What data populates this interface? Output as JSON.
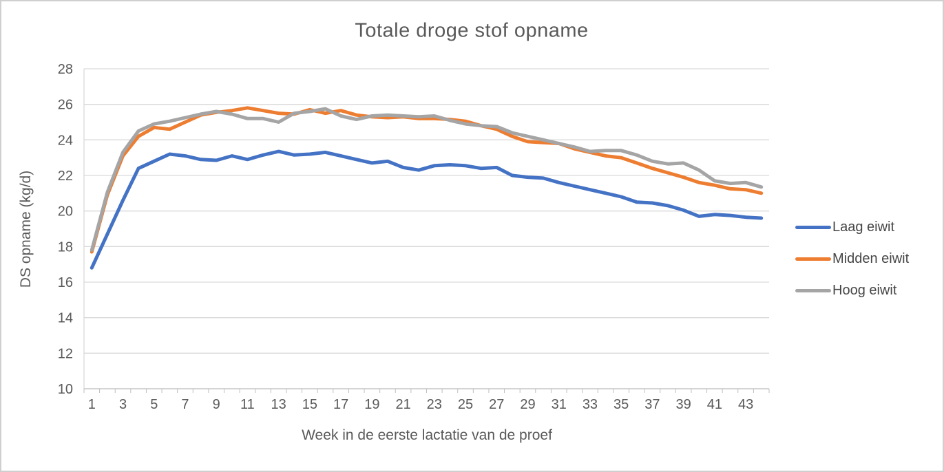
{
  "chart_data": {
    "type": "line",
    "title": "Totale droge stof opname",
    "xlabel": "Week in de eerste lactatie van de proef",
    "ylabel": "DS opname (kg/d)",
    "x_range": [
      1,
      44
    ],
    "x_tick_labels": [
      "1",
      "3",
      "5",
      "7",
      "9",
      "11",
      "13",
      "15",
      "17",
      "19",
      "21",
      "23",
      "25",
      "27",
      "29",
      "31",
      "33",
      "35",
      "37",
      "39",
      "41",
      "43"
    ],
    "x_tick_label_weeks": [
      1,
      3,
      5,
      7,
      9,
      11,
      13,
      15,
      17,
      19,
      21,
      23,
      25,
      27,
      29,
      31,
      33,
      35,
      37,
      39,
      41,
      43
    ],
    "ylim": [
      10,
      28
    ],
    "y_ticks": [
      10,
      12,
      14,
      16,
      18,
      20,
      22,
      24,
      26,
      28
    ],
    "grid": "horizontal",
    "legend_position": "right",
    "colors": {
      "text": "#595959",
      "gridline": "#d9d9d9",
      "axis_line": "#bfbfbf"
    },
    "series": [
      {
        "name": "Laag eiwit",
        "color": "#4472C4",
        "values": [
          16.8,
          18.7,
          20.6,
          22.4,
          22.8,
          23.2,
          23.1,
          22.9,
          22.85,
          23.1,
          22.9,
          23.15,
          23.35,
          23.15,
          23.2,
          23.3,
          23.1,
          22.9,
          22.7,
          22.8,
          22.45,
          22.3,
          22.55,
          22.6,
          22.55,
          22.4,
          22.45,
          22.0,
          21.9,
          21.85,
          21.6,
          21.4,
          21.2,
          21.0,
          20.8,
          20.5,
          20.45,
          20.3,
          20.05,
          19.7,
          19.8,
          19.75,
          19.65,
          19.6
        ]
      },
      {
        "name": "Midden eiwit",
        "color": "#ED7D31",
        "values": [
          17.7,
          20.9,
          23.1,
          24.2,
          24.7,
          24.6,
          25.0,
          25.4,
          25.55,
          25.65,
          25.8,
          25.65,
          25.5,
          25.45,
          25.7,
          25.5,
          25.65,
          25.4,
          25.3,
          25.25,
          25.3,
          25.2,
          25.2,
          25.15,
          25.05,
          24.8,
          24.6,
          24.2,
          23.9,
          23.85,
          23.8,
          23.5,
          23.3,
          23.1,
          23.0,
          22.7,
          22.4,
          22.15,
          21.9,
          21.6,
          21.45,
          21.25,
          21.2,
          21.0
        ]
      },
      {
        "name": "Hoog eiwit",
        "color": "#A5A5A5",
        "values": [
          17.8,
          21.05,
          23.3,
          24.5,
          24.9,
          25.05,
          25.25,
          25.45,
          25.6,
          25.45,
          25.2,
          25.2,
          25.0,
          25.5,
          25.6,
          25.75,
          25.35,
          25.15,
          25.35,
          25.4,
          25.35,
          25.3,
          25.35,
          25.1,
          24.9,
          24.8,
          24.75,
          24.4,
          24.2,
          24.0,
          23.8,
          23.6,
          23.35,
          23.4,
          23.4,
          23.15,
          22.8,
          22.65,
          22.7,
          22.3,
          21.7,
          21.55,
          21.6,
          21.35
        ]
      }
    ]
  }
}
